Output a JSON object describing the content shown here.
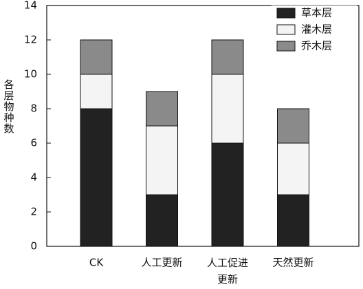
{
  "chart_data": {
    "type": "stacked-bar",
    "y_label": "各层物种数",
    "categories": [
      "CK",
      "人工更新",
      "人工促进更新",
      "天然更新"
    ],
    "series": [
      {
        "name": "草本层",
        "color": "#222222",
        "values": [
          8,
          3,
          6,
          3
        ]
      },
      {
        "name": "灌木层",
        "color": "#f4f4f4",
        "values": [
          2,
          4,
          4,
          3
        ]
      },
      {
        "name": "乔木层",
        "color": "#8a8a8a",
        "values": [
          2,
          2,
          2,
          2
        ]
      }
    ],
    "ylim": [
      0,
      14
    ],
    "yticks": [
      0,
      2,
      4,
      6,
      8,
      10,
      12,
      14
    ],
    "legend": "upper right"
  }
}
